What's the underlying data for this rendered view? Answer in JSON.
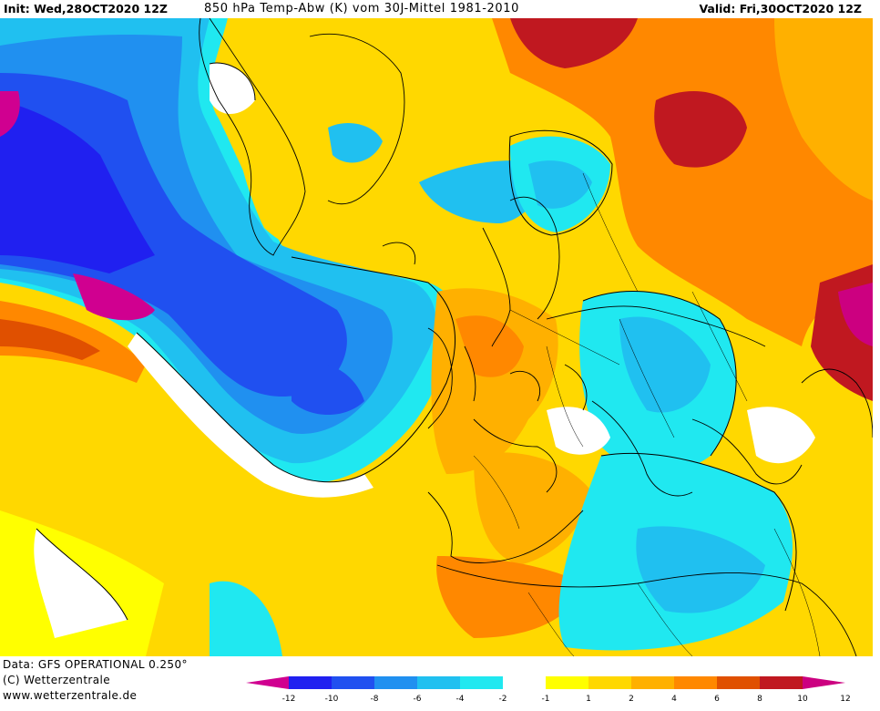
{
  "header": {
    "init": "Init: Wed,28OCT2020 12Z",
    "title": "850 hPa Temp-Abw (K) vom 30J-Mittel 1981-2010",
    "valid": "Valid: Fri,30OCT2020 12Z"
  },
  "footer": {
    "data_source": "Data: GFS OPERATIONAL 0.250°",
    "copyright": "(C) Wetterzentrale",
    "url": "www.wetterzentrale.de"
  },
  "legend": {
    "colors": [
      "#d00090",
      "#2020f0",
      "#2050f0",
      "#2090f0",
      "#20c0f0",
      "#20e8f0",
      "#ffffff",
      "#ffff00",
      "#ffd800",
      "#ffb000",
      "#ff8800",
      "#e05000",
      "#c01820",
      "#cc0080"
    ],
    "ticks": [
      "-12",
      "-10",
      "-8",
      "-6",
      "-4",
      "-2",
      "-1",
      "1",
      "2",
      "4",
      "6",
      "8",
      "10",
      "12"
    ]
  }
}
